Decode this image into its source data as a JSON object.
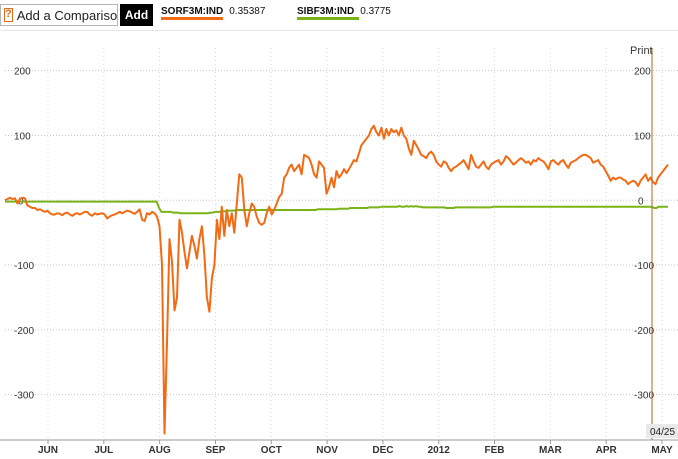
{
  "toolbar": {
    "compare_icon": "?",
    "compare_label": "Add a Comparison",
    "add_label": "Add"
  },
  "legend": [
    {
      "name": "SORF3M:IND",
      "value": "0.35387",
      "color": "#f26a13"
    },
    {
      "name": "SIBF3M:IND",
      "value": "0.3775",
      "color": "#7ab317"
    }
  ],
  "print_label": "Print",
  "date_badge": "04/25",
  "chart_data": {
    "type": "line",
    "ylim": [
      -370,
      235
    ],
    "yticks": [
      200,
      100,
      0,
      -100,
      -200,
      -300
    ],
    "grid": true,
    "x_labels": [
      "JUN",
      "JUL",
      "AUG",
      "SEP",
      "OCT",
      "NOV",
      "DEC",
      "2012",
      "FEB",
      "MAR",
      "APR",
      "MAY"
    ],
    "series": [
      {
        "name": "SORF3M:IND",
        "color": "#f26a13",
        "values": [
          0,
          2,
          4,
          2,
          3,
          -5,
          2,
          4,
          3,
          -8,
          -10,
          -12,
          -12,
          -15,
          -14,
          -16,
          -18,
          -16,
          -20,
          -22,
          -22,
          -20,
          -21,
          -23,
          -20,
          -19,
          -22,
          -24,
          -21,
          -20,
          -22,
          -20,
          -18,
          -18,
          -22,
          -24,
          -20,
          -22,
          -21,
          -20,
          -22,
          -28,
          -25,
          -23,
          -22,
          -20,
          -18,
          -20,
          -18,
          -16,
          -17,
          -19,
          -21,
          -18,
          -14,
          -30,
          -32,
          -20,
          -22,
          -18,
          -20,
          -25,
          -40,
          -100,
          -360,
          -220,
          -60,
          -95,
          -170,
          -150,
          -30,
          -50,
          -80,
          -105,
          -80,
          -55,
          -70,
          -90,
          -60,
          -40,
          -85,
          -150,
          -172,
          -120,
          -100,
          -30,
          -60,
          -10,
          -55,
          -15,
          -40,
          -20,
          -50,
          -5,
          40,
          35,
          -15,
          -40,
          -20,
          -5,
          -10,
          -25,
          -35,
          -38,
          -35,
          -20,
          -10,
          -22,
          -15,
          -5,
          5,
          10,
          35,
          40,
          50,
          55,
          45,
          50,
          55,
          40,
          70,
          68,
          65,
          55,
          40,
          35,
          60,
          55,
          50,
          10,
          20,
          35,
          20,
          45,
          35,
          40,
          48,
          42,
          48,
          55,
          62,
          60,
          72,
          85,
          90,
          95,
          100,
          110,
          115,
          105,
          100,
          112,
          95,
          110,
          100,
          110,
          105,
          108,
          100,
          112,
          100,
          95,
          80,
          70,
          92,
          85,
          78,
          70,
          68,
          65,
          72,
          75,
          70,
          60,
          55,
          52,
          60,
          58,
          50,
          45,
          50,
          52,
          55,
          58,
          62,
          55,
          48,
          70,
          60,
          52,
          50,
          55,
          60,
          52,
          48,
          55,
          58,
          60,
          62,
          55,
          60,
          68,
          65,
          60,
          55,
          58,
          62,
          65,
          62,
          58,
          60,
          55,
          62,
          60,
          65,
          62,
          60,
          55,
          48,
          60,
          62,
          58,
          55,
          60,
          62,
          55,
          50,
          58,
          60,
          62,
          65,
          68,
          70,
          70,
          68,
          65,
          58,
          60,
          62,
          55,
          52,
          45,
          38,
          30,
          35,
          32,
          35,
          35,
          32,
          30,
          25,
          28,
          30,
          28,
          22,
          30,
          35,
          40,
          30,
          35,
          28,
          25,
          35,
          40,
          45,
          50,
          55
        ]
      },
      {
        "name": "SIBF3M:IND",
        "color": "#7ab317",
        "values": [
          -2,
          -2,
          -2,
          -2,
          -2,
          -2,
          -2,
          -2,
          -2,
          -2,
          -2,
          -2,
          -2,
          -2,
          -2,
          -2,
          -2,
          -2,
          -2,
          -2,
          -2,
          -2,
          -2,
          -2,
          -2,
          -2,
          -2,
          -2,
          -2,
          -2,
          -2,
          -2,
          -2,
          -2,
          -2,
          -2,
          -2,
          -2,
          -2,
          -2,
          -2,
          -2,
          -2,
          -2,
          -2,
          -2,
          -2,
          -2,
          -2,
          -2,
          -2,
          -2,
          -2,
          -2,
          -2,
          -2,
          -2,
          -2,
          -2,
          -2,
          -2,
          -2,
          -2,
          -2,
          -2,
          -2,
          -12,
          -18,
          -18,
          -18,
          -18,
          -18,
          -19,
          -19,
          -19,
          -20,
          -20,
          -20,
          -20,
          -20,
          -20,
          -20,
          -20,
          -20,
          -20,
          -20,
          -20,
          -20,
          -19,
          -19,
          -18,
          -18,
          -18,
          -17,
          -17,
          -17,
          -16,
          -16,
          -16,
          -15,
          -15,
          -15,
          -15,
          -15,
          -15,
          -15,
          -15,
          -15,
          -15,
          -15,
          -15,
          -15,
          -15,
          -15,
          -15,
          -15,
          -15,
          -15,
          -15,
          -15,
          -15,
          -15,
          -15,
          -15,
          -15,
          -15,
          -15,
          -15,
          -15,
          -15,
          -15,
          -15,
          -15,
          -15,
          -14,
          -14,
          -14,
          -14,
          -14,
          -14,
          -14,
          -14,
          -14,
          -13,
          -13,
          -13,
          -13,
          -13,
          -12,
          -12,
          -12,
          -12,
          -12,
          -12,
          -12,
          -12,
          -11,
          -11,
          -11,
          -11,
          -11,
          -10,
          -10,
          -10,
          -10,
          -10,
          -10,
          -10,
          -10,
          -9,
          -10,
          -10,
          -9,
          -10,
          -9,
          -10,
          -9,
          -10,
          -10,
          -11,
          -11,
          -11,
          -11,
          -11,
          -11,
          -11,
          -11,
          -11,
          -11,
          -12,
          -12,
          -12,
          -12,
          -11,
          -11,
          -11,
          -11,
          -11,
          -11,
          -11,
          -11,
          -11,
          -11,
          -11,
          -11,
          -11,
          -11,
          -11,
          -11,
          -10,
          -10,
          -10,
          -10,
          -10,
          -10,
          -10,
          -10,
          -10,
          -10,
          -10,
          -10,
          -10,
          -10,
          -10,
          -10,
          -10,
          -10,
          -10,
          -10,
          -10,
          -10,
          -10,
          -10,
          -10,
          -10,
          -10,
          -10,
          -10,
          -10,
          -10,
          -10,
          -10,
          -10,
          -10,
          -10,
          -10,
          -10,
          -10,
          -10,
          -10,
          -10,
          -10,
          -10,
          -10,
          -10,
          -10,
          -10,
          -10,
          -10,
          -10,
          -10,
          -10,
          -10,
          -10,
          -10,
          -10,
          -10,
          -10,
          -10,
          -10,
          -10,
          -10,
          -10,
          -10,
          -10,
          -10,
          -10,
          -10,
          -12,
          -12,
          -10,
          -10,
          -10,
          -10,
          -10
        ]
      }
    ]
  }
}
